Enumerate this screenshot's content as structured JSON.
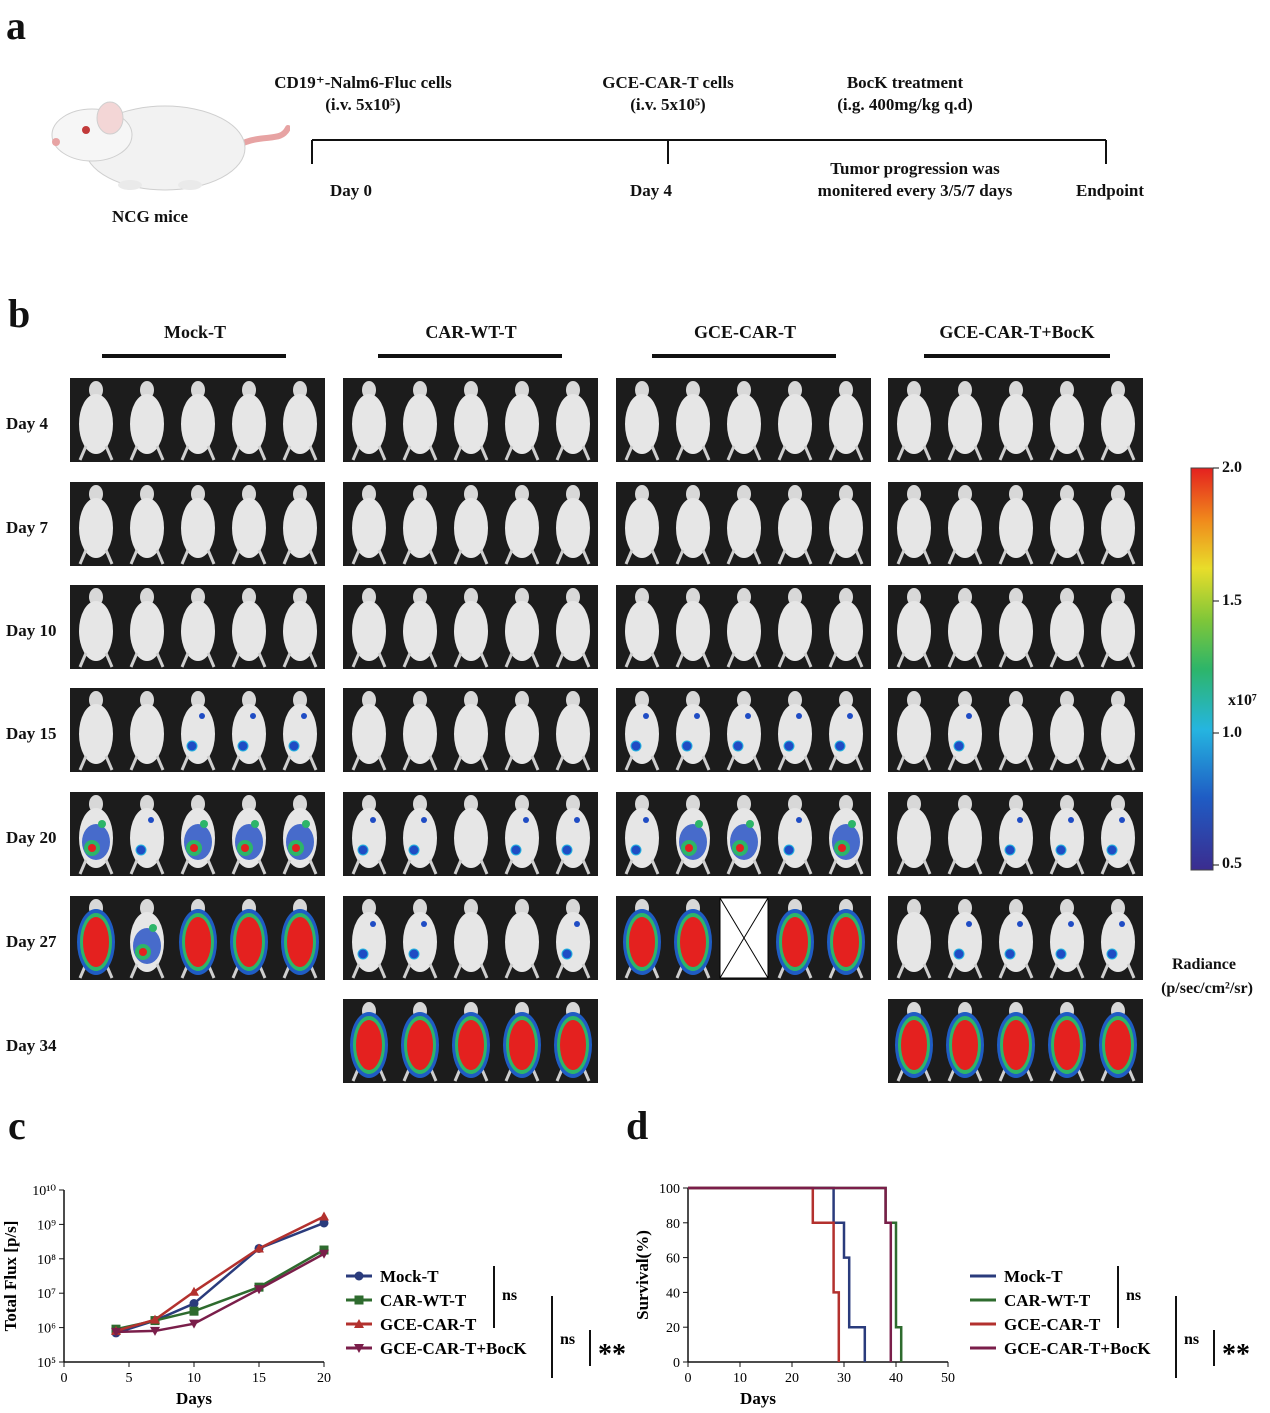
{
  "panels": {
    "a": "a",
    "b": "b",
    "c": "c",
    "d": "d"
  },
  "timeline": {
    "mouse_label": "NCG mice",
    "events_top": [
      {
        "line1": "CD19⁺-Nalm6-Fluc cells",
        "line2": "(i.v. 5x10⁵)"
      },
      {
        "line1": "GCE-CAR-T cells",
        "line2": "(i.v. 5x10⁵)"
      },
      {
        "line1": "BocK treatment",
        "line2": "(i.g. 400mg/kg q.d)"
      }
    ],
    "events_bottom": [
      "Day 0",
      "Day 4",
      "Tumor progression was",
      "monitered every 3/5/7 days",
      "Endpoint"
    ]
  },
  "imaging": {
    "groups": [
      "Mock-T",
      "CAR-WT-T",
      "GCE-CAR-T",
      "GCE-CAR-T+BocK"
    ],
    "days": [
      "Day 4",
      "Day 7",
      "Day 10",
      "Day 15",
      "Day 20",
      "Day 27",
      "Day 34"
    ],
    "colorbar": {
      "ticks": [
        "2.0",
        "1.5",
        "1.0",
        "0.5"
      ],
      "scale_label": "x10⁷",
      "title": "Radiance",
      "unit": "(p/sec/cm²/sr)"
    }
  },
  "legend": {
    "c": [
      "Mock-T",
      "CAR-WT-T",
      "GCE-CAR-T",
      "GCE-CAR-T+BocK"
    ],
    "d": [
      "Mock-T",
      "CAR-WT-T",
      "GCE-CAR-T",
      "GCE-CAR-T+BocK"
    ],
    "sig_ns1": "ns",
    "sig_ns2": "ns",
    "sig_star": "**"
  },
  "colors": {
    "mock": "#2a3b7c",
    "carwt": "#2e6b2e",
    "gce": "#b3312e",
    "bock": "#7a1e4a"
  },
  "chart_data": [
    {
      "type": "line",
      "xlabel": "Days",
      "ylabel": "Total Flux [p/s]",
      "xlim": [
        0,
        20
      ],
      "xticks": [
        "0",
        "5",
        "10",
        "15",
        "20"
      ],
      "ylim_log10": [
        5,
        10
      ],
      "yticks": [
        "10⁵",
        "10⁶",
        "10⁷",
        "10⁸",
        "10⁹",
        "10¹⁰"
      ],
      "x": [
        4,
        7,
        10,
        15,
        20
      ],
      "series": [
        {
          "name": "Mock-T",
          "values": [
            700000.0,
            1600000.0,
            5000000.0,
            200000000.0,
            1100000000.0
          ]
        },
        {
          "name": "CAR-WT-T",
          "values": [
            900000.0,
            1600000.0,
            3000000.0,
            15000000.0,
            180000000.0
          ]
        },
        {
          "name": "GCE-CAR-T",
          "values": [
            800000.0,
            1700000.0,
            11000000.0,
            200000000.0,
            1700000000.0
          ]
        },
        {
          "name": "GCE-CAR-T+BocK",
          "values": [
            750000.0,
            800000.0,
            1300000.0,
            13000000.0,
            140000000.0
          ]
        }
      ]
    },
    {
      "type": "line",
      "xlabel": "Days",
      "ylabel": "Survival(%)",
      "xlim": [
        0,
        50
      ],
      "xticks": [
        "0",
        "10",
        "20",
        "30",
        "40",
        "50"
      ],
      "ylim": [
        0,
        100
      ],
      "yticks": [
        "0",
        "20",
        "40",
        "60",
        "80",
        "100"
      ],
      "series": [
        {
          "name": "Mock-T",
          "steps": [
            [
              0,
              100
            ],
            [
              28,
              100
            ],
            [
              28,
              80
            ],
            [
              30,
              80
            ],
            [
              30,
              60
            ],
            [
              31,
              60
            ],
            [
              31,
              20
            ],
            [
              34,
              20
            ],
            [
              34,
              0
            ]
          ]
        },
        {
          "name": "CAR-WT-T",
          "steps": [
            [
              0,
              100
            ],
            [
              38,
              100
            ],
            [
              38,
              80
            ],
            [
              40,
              80
            ],
            [
              40,
              20
            ],
            [
              41,
              20
            ],
            [
              41,
              0
            ]
          ]
        },
        {
          "name": "GCE-CAR-T",
          "steps": [
            [
              0,
              100
            ],
            [
              24,
              100
            ],
            [
              24,
              80
            ],
            [
              28,
              80
            ],
            [
              28,
              40
            ],
            [
              29,
              40
            ],
            [
              29,
              0
            ]
          ]
        },
        {
          "name": "GCE-CAR-T+BocK",
          "steps": [
            [
              0,
              100
            ],
            [
              38,
              100
            ],
            [
              38,
              80
            ],
            [
              39,
              80
            ],
            [
              39,
              0
            ]
          ]
        }
      ]
    }
  ]
}
